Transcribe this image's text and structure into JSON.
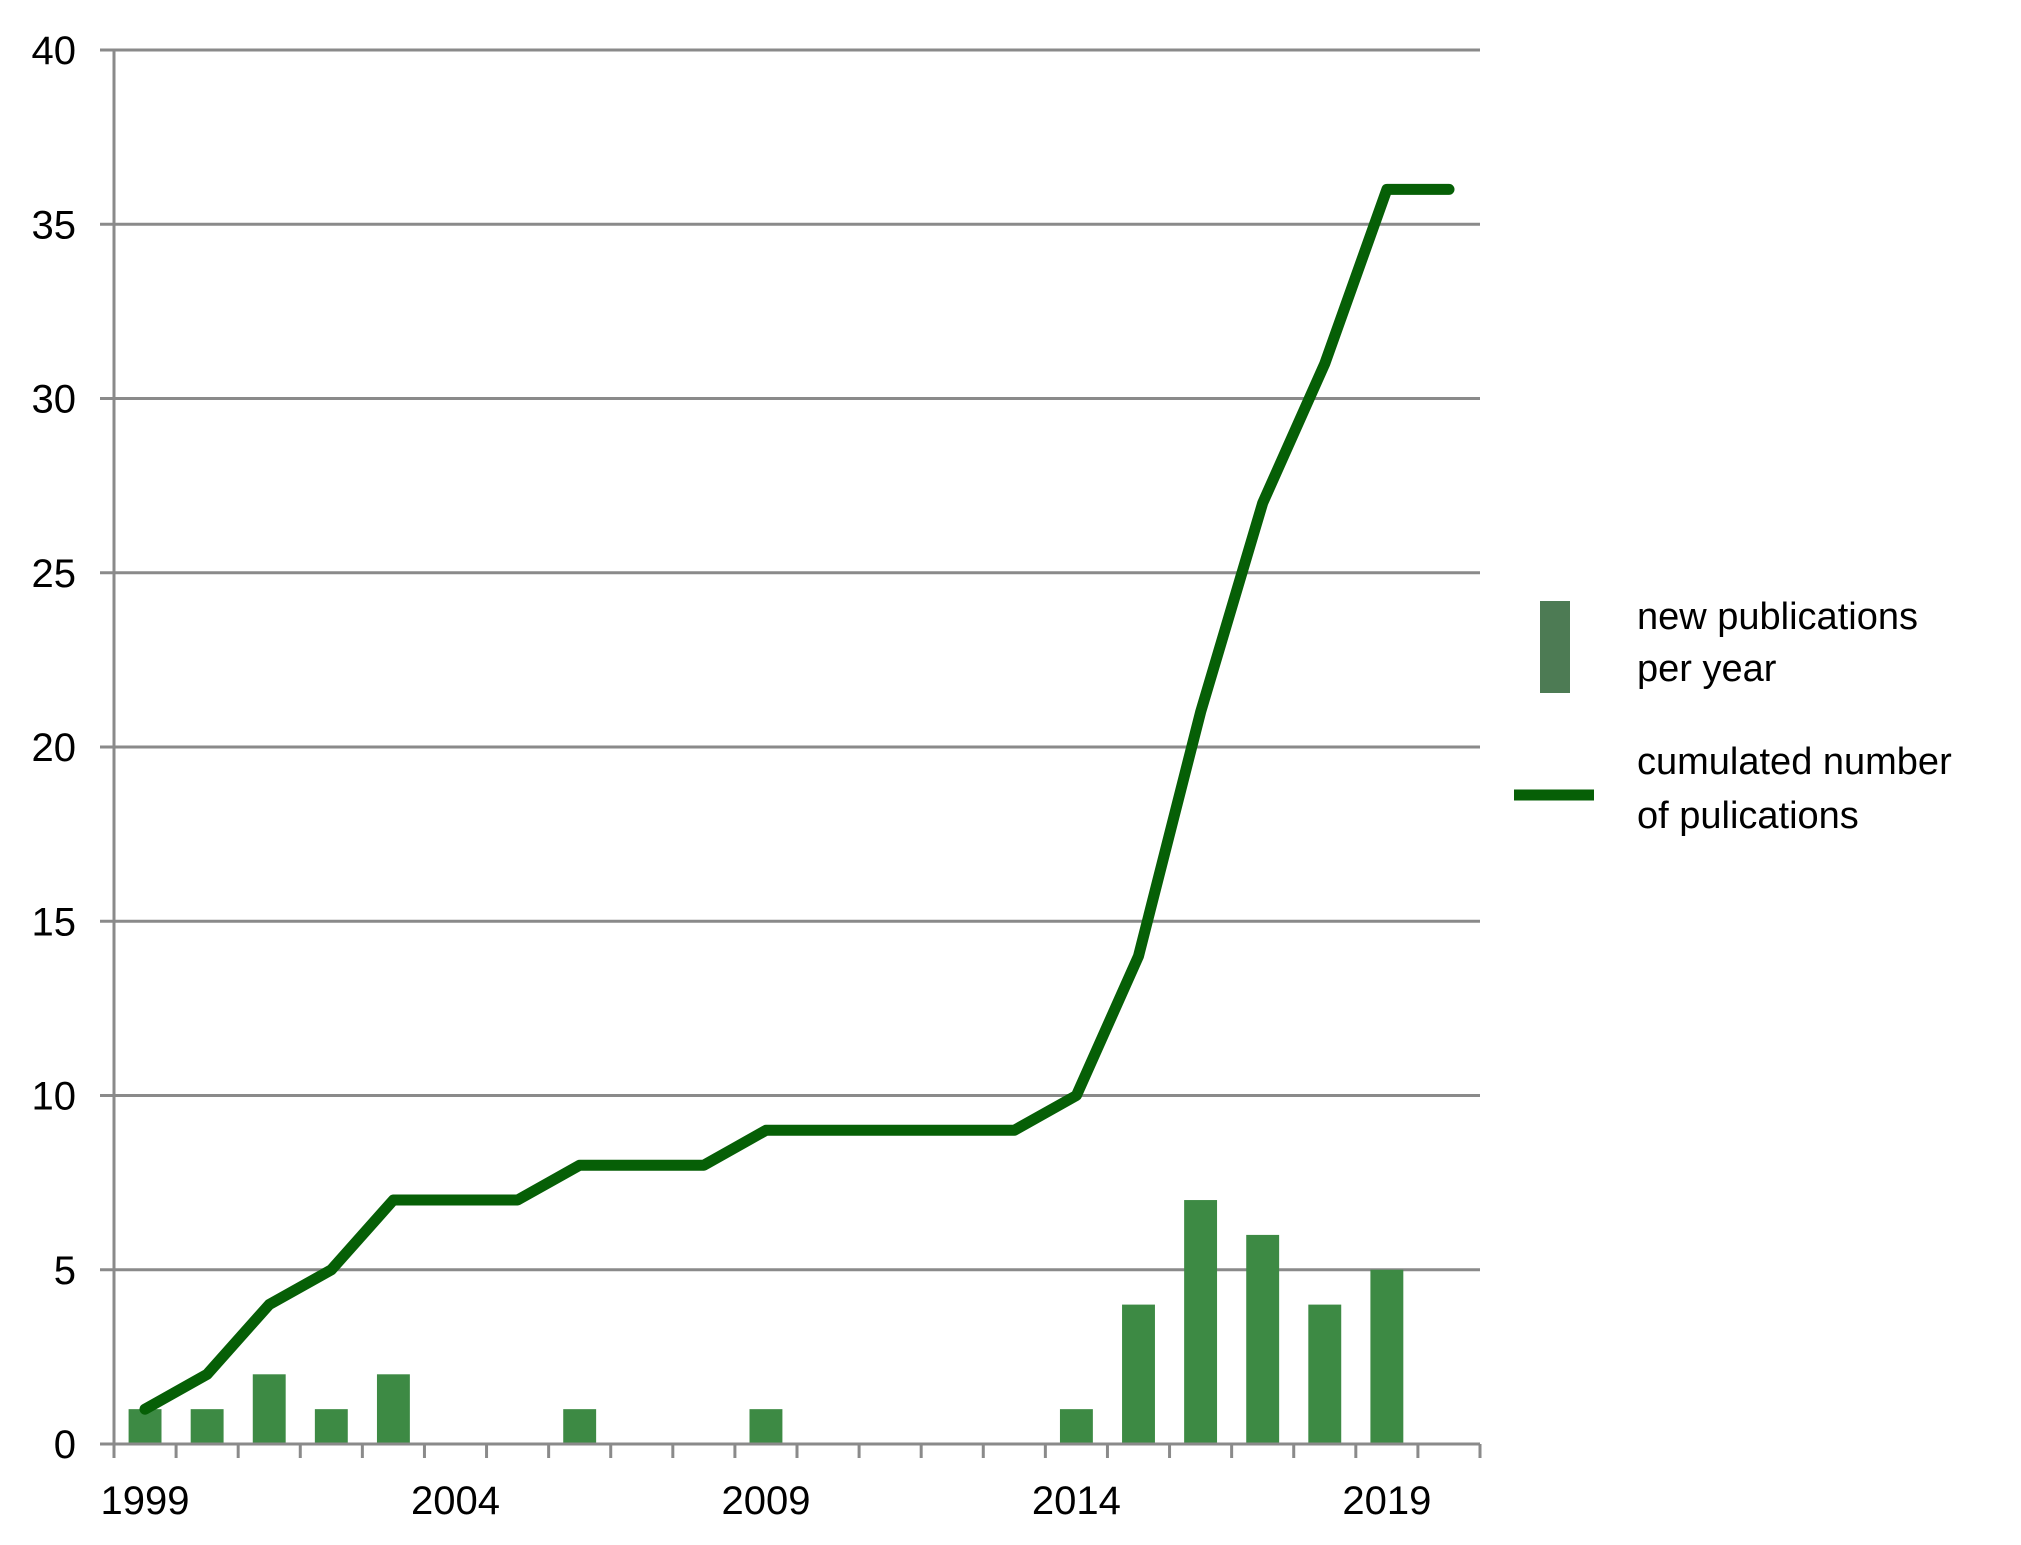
{
  "chart_data": {
    "type": "bar",
    "title": "",
    "xlabel": "",
    "ylabel": "",
    "ylim": [
      0,
      40
    ],
    "yticks": [
      0,
      5,
      10,
      15,
      20,
      25,
      30,
      35,
      40
    ],
    "grid": true,
    "legend_position": "right",
    "x": [
      1999,
      2000,
      2001,
      2002,
      2003,
      2004,
      2005,
      2006,
      2007,
      2008,
      2009,
      2010,
      2011,
      2012,
      2013,
      2014,
      2015,
      2016,
      2017,
      2018,
      2019,
      2020
    ],
    "xtick_labels": [
      "1999",
      "2004",
      "2009",
      "2014",
      "2019"
    ],
    "series": [
      {
        "name": "new publications per year",
        "legend_lines": [
          "new publications",
          "per year"
        ],
        "type": "bar",
        "color": "#3d8a44",
        "values": [
          1,
          1,
          2,
          1,
          2,
          0,
          0,
          1,
          0,
          0,
          1,
          0,
          0,
          0,
          0,
          1,
          4,
          7,
          6,
          4,
          5,
          0
        ]
      },
      {
        "name": "cumulated number of pulications",
        "legend_lines": [
          "cumulated number",
          "of pulications"
        ],
        "type": "line",
        "color": "#065f06",
        "values": [
          1,
          2,
          4,
          5,
          7,
          7,
          7,
          8,
          8,
          8,
          9,
          9,
          9,
          9,
          9,
          10,
          14,
          21,
          27,
          31,
          36,
          36
        ]
      }
    ]
  }
}
